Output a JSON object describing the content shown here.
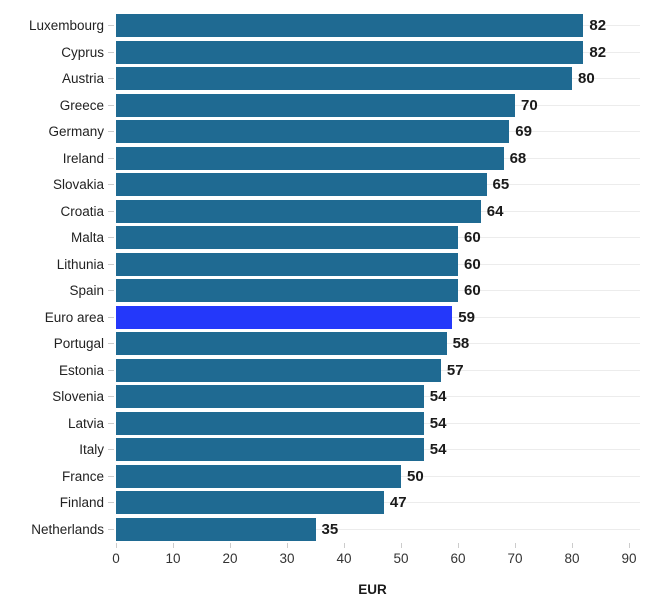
{
  "chart_data": {
    "type": "bar",
    "orientation": "horizontal",
    "title": "",
    "xlabel": "EUR",
    "categories": [
      "Luxembourg",
      "Cyprus",
      "Austria",
      "Greece",
      "Germany",
      "Ireland",
      "Slovakia",
      "Croatia",
      "Malta",
      "Lithunia",
      "Spain",
      "Euro area",
      "Portugal",
      "Estonia",
      "Slovenia",
      "Latvia",
      "Italy",
      "France",
      "Finland",
      "Netherlands"
    ],
    "values": [
      82,
      82,
      80,
      70,
      69,
      68,
      65,
      64,
      60,
      60,
      60,
      59,
      58,
      57,
      54,
      54,
      54,
      50,
      47,
      35
    ],
    "value_labels": [
      "82",
      "82",
      "80",
      "70",
      "69",
      "68",
      "65",
      "64",
      "60",
      "60",
      "60",
      "59",
      "58",
      "57",
      "54",
      "54",
      "54",
      "50",
      "47",
      "35"
    ],
    "highlighted_category": "Euro area",
    "x_ticks": [
      0,
      10,
      20,
      30,
      40,
      50,
      60,
      70,
      80,
      90
    ],
    "xlim": [
      0,
      92
    ],
    "grid": "horizontal-category-gridlines",
    "legend": "none",
    "colors": {
      "bar": "#1f6a92",
      "highlight": "#2438fa",
      "gridline": "#ececec",
      "tick": "#cccccc",
      "category_text": "#222222",
      "value_text": "#1a1a1a"
    }
  }
}
